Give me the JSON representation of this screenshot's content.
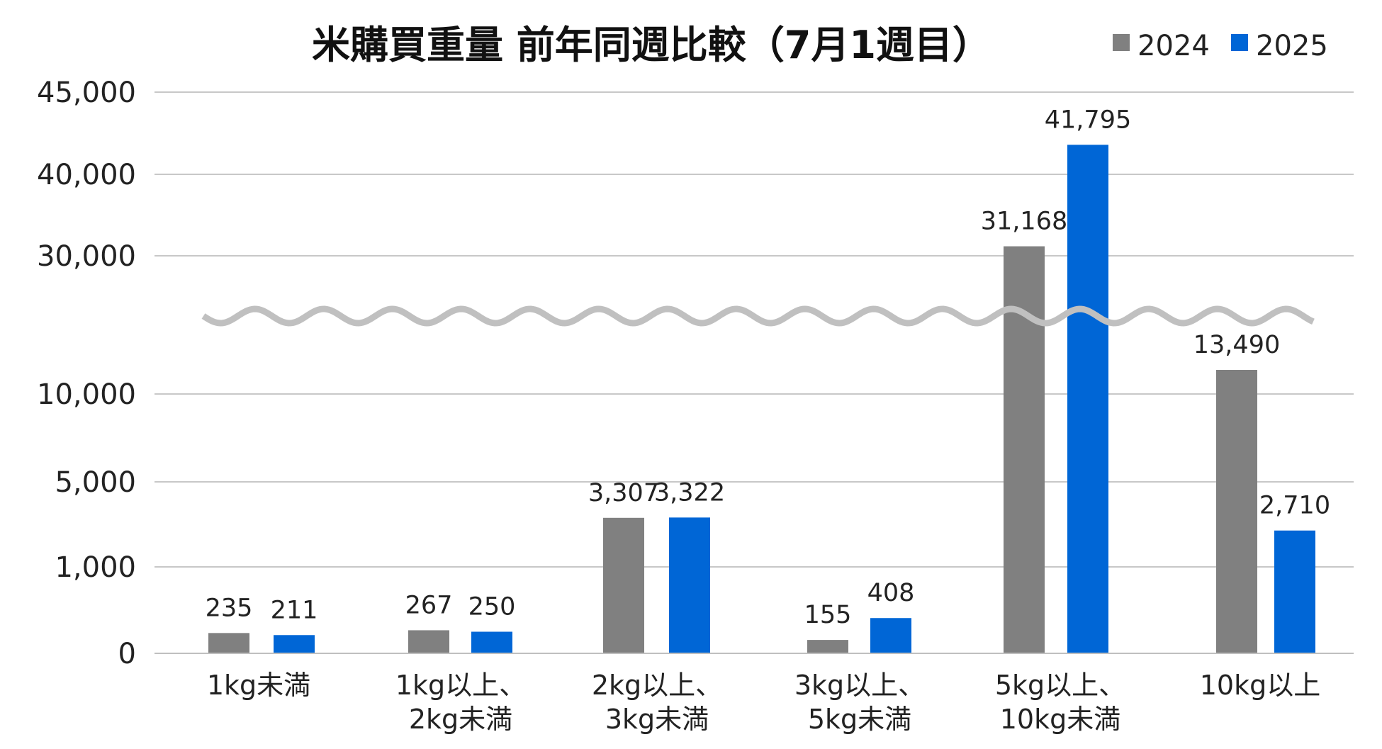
{
  "chart_data": {
    "type": "bar",
    "title": "米購買重量 前年同週比較（7月1週目）",
    "categories": [
      [
        "1kg未満"
      ],
      [
        "1kg以上、",
        "2kg未満"
      ],
      [
        "2kg以上、",
        "3kg未満"
      ],
      [
        "3kg以上、",
        "5kg未満"
      ],
      [
        "5kg以上、",
        "10kg未満"
      ],
      [
        "10kg以上"
      ]
    ],
    "series": [
      {
        "name": "2024",
        "color": "#808080",
        "values": [
          235,
          267,
          3307,
          155,
          31168,
          13490
        ],
        "labels": [
          "235",
          "267",
          "3,307",
          "155",
          "31,168",
          "13,490"
        ]
      },
      {
        "name": "2025",
        "color": "#0066d6",
        "values": [
          211,
          250,
          3322,
          408,
          41795,
          2710
        ],
        "labels": [
          "211",
          "250",
          "3,322",
          "408",
          "41,795",
          "2,710"
        ]
      }
    ],
    "y_ticks": [
      {
        "value": 0,
        "label": "0"
      },
      {
        "value": 1000,
        "label": "1,000"
      },
      {
        "value": 5000,
        "label": "5,000"
      },
      {
        "value": 10000,
        "label": "10,000"
      },
      {
        "value": 30000,
        "label": "30,000"
      },
      {
        "value": 40000,
        "label": "40,000"
      },
      {
        "value": 45000,
        "label": "45,000"
      }
    ],
    "axis_break": "between 10,000 and 30,000",
    "ylim": [
      0,
      45000
    ],
    "grid": true,
    "legend": "top-right"
  }
}
